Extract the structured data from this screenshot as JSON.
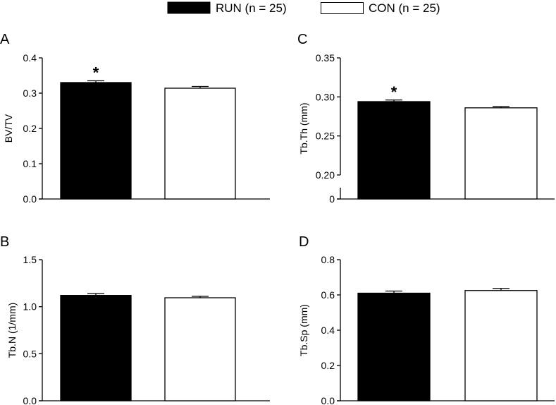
{
  "legend": [
    {
      "label": "RUN (n = 25)",
      "fill": "#000000"
    },
    {
      "label": "CON (n = 25)",
      "fill": "#ffffff"
    }
  ],
  "chart_data": [
    {
      "type": "bar",
      "panel": "A",
      "ylabel": "BV/TV",
      "ylim": [
        0,
        0.4
      ],
      "ticks": [
        0.0,
        0.1,
        0.2,
        0.3,
        0.4
      ],
      "tick_labels": [
        "0.0",
        "0.1",
        "0.2",
        "0.3",
        "0.4"
      ],
      "axis_break": false,
      "categories": [
        "RUN",
        "CON"
      ],
      "values": [
        0.33,
        0.314
      ],
      "errors": [
        0.005,
        0.005
      ],
      "colors": [
        "#000000",
        "#ffffff"
      ],
      "significance": [
        "*",
        ""
      ]
    },
    {
      "type": "bar",
      "panel": "C",
      "ylabel": "Tb.Th (mm)",
      "ylim": [
        0.2,
        0.35
      ],
      "ticks": [
        0,
        0.2,
        0.25,
        0.3,
        0.35
      ],
      "tick_labels": [
        "0",
        "0.20",
        "0.25",
        "0.30",
        "0.35"
      ],
      "axis_break": true,
      "categories": [
        "RUN",
        "CON"
      ],
      "values": [
        0.294,
        0.286
      ],
      "errors": [
        0.002,
        0.0015
      ],
      "colors": [
        "#000000",
        "#ffffff"
      ],
      "significance": [
        "*",
        ""
      ]
    },
    {
      "type": "bar",
      "panel": "B",
      "ylabel": "Tb.N (1/mm)",
      "ylim": [
        0,
        1.5
      ],
      "ticks": [
        0.0,
        0.5,
        1.0,
        1.5
      ],
      "tick_labels": [
        "0.0",
        "0.5",
        "1.0",
        "1.5"
      ],
      "axis_break": false,
      "categories": [
        "RUN",
        "CON"
      ],
      "values": [
        1.12,
        1.095
      ],
      "errors": [
        0.02,
        0.015
      ],
      "colors": [
        "#000000",
        "#ffffff"
      ],
      "significance": [
        "",
        ""
      ]
    },
    {
      "type": "bar",
      "panel": "D",
      "ylabel": "Tb.Sp (mm)",
      "ylim": [
        0,
        0.8
      ],
      "ticks": [
        0.0,
        0.2,
        0.4,
        0.6,
        0.8
      ],
      "tick_labels": [
        "0.0",
        "0.2",
        "0.4",
        "0.6",
        "0.8"
      ],
      "axis_break": false,
      "categories": [
        "RUN",
        "CON"
      ],
      "values": [
        0.61,
        0.625
      ],
      "errors": [
        0.012,
        0.012
      ],
      "colors": [
        "#000000",
        "#ffffff"
      ],
      "significance": [
        "",
        ""
      ]
    }
  ]
}
